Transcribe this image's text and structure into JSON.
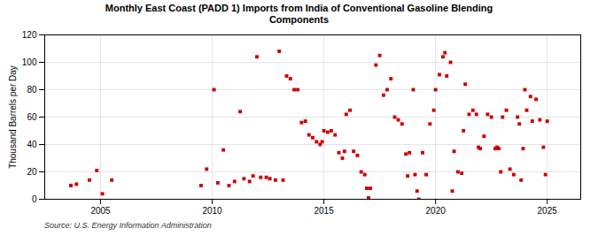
{
  "chart_data": {
    "type": "scatter",
    "title": "Monthly East Coast (PADD 1) Imports from India of Conventional Gasoline Blending\nComponents",
    "ylabel": "Thousand Barrels per Day",
    "source": "Source: U.S. Energy Information Administration",
    "xlim": [
      2002.5,
      2026.5
    ],
    "ylim": [
      0,
      120
    ],
    "xticks": [
      2005,
      2010,
      2015,
      2020,
      2025
    ],
    "yticks": [
      0,
      20,
      40,
      60,
      80,
      100,
      120
    ],
    "grid": true,
    "color": "#cc0000",
    "marker": "square",
    "x": [
      2003.67,
      2003.92,
      2004.5,
      2004.83,
      2005.08,
      2005.5,
      2009.5,
      2009.75,
      2010.08,
      2010.25,
      2010.5,
      2010.75,
      2011.0,
      2011.25,
      2011.42,
      2011.67,
      2011.83,
      2012.0,
      2012.17,
      2012.42,
      2012.58,
      2012.83,
      2013.0,
      2013.17,
      2013.33,
      2013.5,
      2013.67,
      2013.83,
      2014.0,
      2014.17,
      2014.33,
      2014.5,
      2014.67,
      2014.83,
      2014.92,
      2015.0,
      2015.17,
      2015.33,
      2015.5,
      2015.67,
      2015.83,
      2015.92,
      2016.0,
      2016.17,
      2016.33,
      2016.5,
      2016.67,
      2016.83,
      2016.92,
      2017.0,
      2017.08,
      2017.33,
      2017.5,
      2017.67,
      2017.83,
      2018.0,
      2018.17,
      2018.33,
      2018.5,
      2018.67,
      2018.75,
      2018.83,
      2019.0,
      2019.08,
      2019.17,
      2019.25,
      2019.42,
      2019.58,
      2019.75,
      2019.92,
      2020.0,
      2020.17,
      2020.33,
      2020.42,
      2020.5,
      2020.67,
      2020.75,
      2020.83,
      2021.0,
      2021.17,
      2021.25,
      2021.33,
      2021.5,
      2021.67,
      2021.83,
      2021.92,
      2022.0,
      2022.17,
      2022.33,
      2022.5,
      2022.67,
      2022.75,
      2022.83,
      2022.92,
      2023.0,
      2023.17,
      2023.33,
      2023.5,
      2023.67,
      2023.75,
      2023.83,
      2023.92,
      2024.0,
      2024.08,
      2024.25,
      2024.33,
      2024.5,
      2024.67,
      2024.83,
      2024.92,
      2025.0
    ],
    "values": [
      10,
      11,
      14,
      21,
      4,
      14,
      10,
      22,
      80,
      12,
      36,
      10,
      13,
      64,
      15,
      13,
      17,
      104,
      16,
      16,
      15,
      14,
      108,
      14,
      90,
      88,
      80,
      80,
      56,
      57,
      47,
      45,
      42,
      40,
      42,
      50,
      49,
      50,
      47,
      34,
      30,
      35,
      62,
      65,
      35,
      32,
      20,
      18,
      8,
      1,
      8,
      98,
      105,
      76,
      80,
      88,
      60,
      58,
      55,
      33,
      17,
      34,
      80,
      18,
      6,
      0,
      34,
      18,
      55,
      65,
      80,
      91,
      104,
      107,
      90,
      100,
      6,
      35,
      20,
      19,
      50,
      84,
      62,
      65,
      62,
      38,
      37,
      46,
      62,
      60,
      37,
      38,
      37,
      20,
      60,
      65,
      22,
      18,
      60,
      55,
      14,
      37,
      80,
      65,
      75,
      57,
      73,
      58,
      38,
      18,
      57
    ]
  }
}
